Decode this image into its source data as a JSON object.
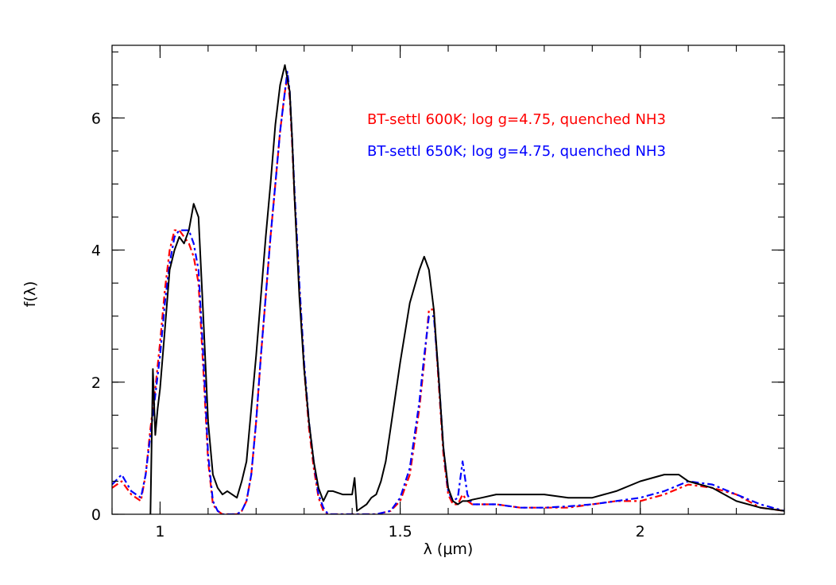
{
  "chart_data": {
    "type": "line",
    "title": "",
    "xlabel": "λ (μm)",
    "ylabel": "f(λ)",
    "xlim": [
      0.9,
      2.3
    ],
    "ylim": [
      0,
      7.1
    ],
    "x_ticks": [
      {
        "value": 1,
        "label": "1"
      },
      {
        "value": 1.5,
        "label": "1.5"
      },
      {
        "value": 2,
        "label": "2"
      }
    ],
    "y_ticks": [
      {
        "value": 0,
        "label": "0"
      },
      {
        "value": 2,
        "label": "2"
      },
      {
        "value": 4,
        "label": "4"
      },
      {
        "value": 6,
        "label": "6"
      }
    ],
    "x_minor_step": 0.1,
    "y_minor_step": 0.5,
    "grid": false,
    "legend_position": "top-right",
    "series": [
      {
        "name": "",
        "color": "#000000",
        "style": "solid",
        "x": [
          0.98,
          0.985,
          0.99,
          0.995,
          1.0,
          1.01,
          1.02,
          1.03,
          1.04,
          1.05,
          1.06,
          1.07,
          1.08,
          1.09,
          1.1,
          1.11,
          1.12,
          1.13,
          1.14,
          1.15,
          1.16,
          1.17,
          1.18,
          1.19,
          1.2,
          1.21,
          1.22,
          1.23,
          1.24,
          1.25,
          1.26,
          1.265,
          1.27,
          1.275,
          1.28,
          1.29,
          1.3,
          1.31,
          1.32,
          1.33,
          1.34,
          1.35,
          1.36,
          1.38,
          1.4,
          1.405,
          1.41,
          1.42,
          1.43,
          1.44,
          1.45,
          1.46,
          1.47,
          1.48,
          1.5,
          1.52,
          1.54,
          1.55,
          1.56,
          1.57,
          1.58,
          1.59,
          1.6,
          1.61,
          1.62,
          1.63,
          1.64,
          1.65,
          1.67,
          1.7,
          1.75,
          1.8,
          1.85,
          1.9,
          1.95,
          2.0,
          2.05,
          2.08,
          2.1,
          2.15,
          2.2,
          2.25,
          2.3
        ],
        "y": [
          0.0,
          2.2,
          1.2,
          1.6,
          1.9,
          2.8,
          3.7,
          4.0,
          4.2,
          4.1,
          4.3,
          4.7,
          4.5,
          3.0,
          1.4,
          0.6,
          0.4,
          0.3,
          0.35,
          0.3,
          0.25,
          0.5,
          0.8,
          1.6,
          2.4,
          3.3,
          4.2,
          5.0,
          5.9,
          6.5,
          6.8,
          6.6,
          6.4,
          5.7,
          4.8,
          3.3,
          2.2,
          1.4,
          0.8,
          0.4,
          0.2,
          0.35,
          0.35,
          0.3,
          0.3,
          0.55,
          0.05,
          0.1,
          0.15,
          0.25,
          0.3,
          0.5,
          0.8,
          1.3,
          2.3,
          3.2,
          3.7,
          3.9,
          3.7,
          3.1,
          2.1,
          1.0,
          0.4,
          0.2,
          0.15,
          0.2,
          0.2,
          0.22,
          0.25,
          0.3,
          0.3,
          0.3,
          0.25,
          0.25,
          0.35,
          0.5,
          0.6,
          0.6,
          0.5,
          0.4,
          0.2,
          0.1,
          0.05
        ]
      },
      {
        "name": "BT-settl 600K;  log g=4.75, quenched NH3",
        "color": "#ff0000",
        "style": "dashed",
        "x": [
          0.9,
          0.92,
          0.94,
          0.96,
          0.97,
          0.98,
          0.99,
          1.0,
          1.01,
          1.02,
          1.03,
          1.04,
          1.05,
          1.06,
          1.07,
          1.08,
          1.09,
          1.1,
          1.11,
          1.12,
          1.13,
          1.14,
          1.15,
          1.16,
          1.17,
          1.18,
          1.19,
          1.2,
          1.21,
          1.22,
          1.23,
          1.24,
          1.25,
          1.26,
          1.265,
          1.27,
          1.275,
          1.28,
          1.29,
          1.3,
          1.31,
          1.32,
          1.33,
          1.34,
          1.35,
          1.36,
          1.4,
          1.45,
          1.48,
          1.5,
          1.52,
          1.54,
          1.55,
          1.56,
          1.57,
          1.58,
          1.59,
          1.6,
          1.61,
          1.62,
          1.63,
          1.64,
          1.65,
          1.7,
          1.75,
          1.8,
          1.85,
          1.9,
          1.95,
          2.0,
          2.05,
          2.1,
          2.15,
          2.2,
          2.25,
          2.3
        ],
        "y": [
          0.4,
          0.5,
          0.3,
          0.2,
          0.6,
          1.3,
          1.9,
          2.6,
          3.4,
          4.0,
          4.3,
          4.3,
          4.2,
          4.1,
          3.9,
          3.5,
          2.2,
          0.8,
          0.15,
          0.05,
          0.0,
          0.0,
          0.0,
          0.0,
          0.05,
          0.2,
          0.6,
          1.4,
          2.4,
          3.3,
          4.2,
          5.0,
          5.8,
          6.4,
          6.6,
          6.3,
          5.6,
          4.8,
          3.4,
          2.2,
          1.3,
          0.7,
          0.25,
          0.05,
          0.0,
          0.0,
          0.0,
          0.0,
          0.05,
          0.2,
          0.6,
          1.6,
          2.3,
          3.1,
          3.1,
          2.0,
          0.9,
          0.3,
          0.15,
          0.15,
          0.3,
          0.2,
          0.15,
          0.15,
          0.1,
          0.1,
          0.1,
          0.15,
          0.2,
          0.2,
          0.3,
          0.45,
          0.4,
          0.3,
          0.1,
          0.05
        ]
      },
      {
        "name": "BT-settl 650K;  log g=4.75, quenched NH3",
        "color": "#0000ff",
        "style": "dashed",
        "x": [
          0.9,
          0.92,
          0.94,
          0.96,
          0.97,
          0.98,
          0.99,
          1.0,
          1.01,
          1.02,
          1.03,
          1.04,
          1.05,
          1.06,
          1.07,
          1.08,
          1.09,
          1.1,
          1.11,
          1.12,
          1.13,
          1.14,
          1.15,
          1.16,
          1.17,
          1.18,
          1.19,
          1.2,
          1.21,
          1.22,
          1.23,
          1.24,
          1.25,
          1.26,
          1.265,
          1.27,
          1.275,
          1.28,
          1.29,
          1.3,
          1.31,
          1.32,
          1.33,
          1.34,
          1.35,
          1.36,
          1.4,
          1.45,
          1.48,
          1.5,
          1.52,
          1.54,
          1.55,
          1.56,
          1.57,
          1.58,
          1.59,
          1.6,
          1.61,
          1.62,
          1.63,
          1.64,
          1.65,
          1.7,
          1.75,
          1.8,
          1.85,
          1.9,
          1.95,
          2.0,
          2.05,
          2.1,
          2.15,
          2.2,
          2.25,
          2.3
        ],
        "y": [
          0.45,
          0.6,
          0.35,
          0.25,
          0.6,
          1.2,
          1.8,
          2.4,
          3.2,
          3.8,
          4.2,
          4.3,
          4.3,
          4.3,
          4.1,
          3.7,
          2.4,
          0.9,
          0.2,
          0.05,
          0.0,
          0.0,
          0.0,
          0.0,
          0.05,
          0.2,
          0.6,
          1.4,
          2.4,
          3.3,
          4.2,
          5.0,
          5.8,
          6.4,
          6.7,
          6.4,
          5.7,
          4.9,
          3.5,
          2.3,
          1.4,
          0.8,
          0.3,
          0.1,
          0.0,
          0.0,
          0.0,
          0.0,
          0.05,
          0.25,
          0.7,
          1.7,
          2.4,
          3.0,
          3.0,
          2.1,
          1.0,
          0.35,
          0.2,
          0.25,
          0.8,
          0.3,
          0.15,
          0.15,
          0.1,
          0.1,
          0.12,
          0.15,
          0.2,
          0.25,
          0.35,
          0.5,
          0.45,
          0.3,
          0.15,
          0.05
        ]
      }
    ]
  }
}
